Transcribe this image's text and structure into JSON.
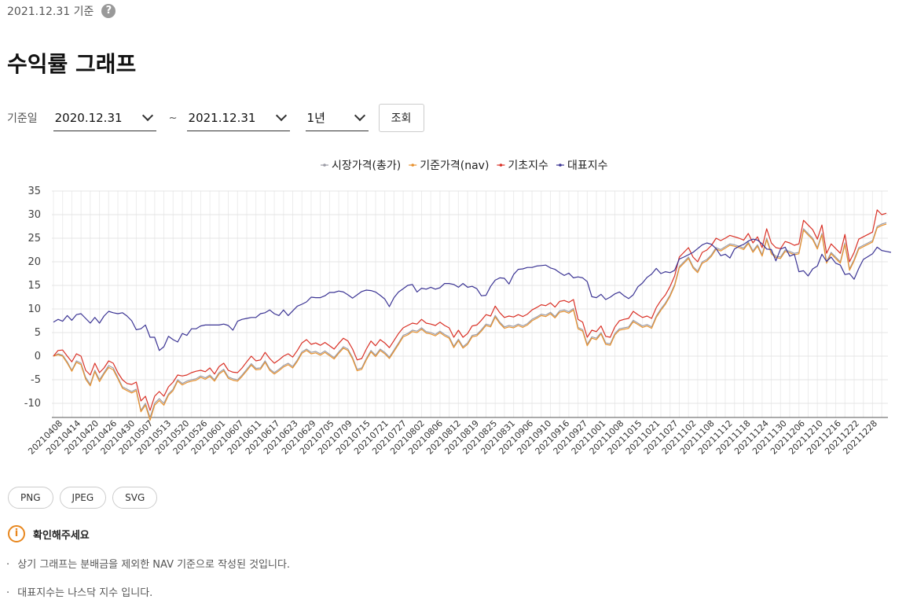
{
  "header": {
    "as_of": "2021.12.31 기준",
    "help_icon": "question-icon",
    "title": "수익률 그래프"
  },
  "filters": {
    "label": "기준일",
    "start_date": "2020.12.31",
    "separator": "~",
    "end_date": "2021.12.31",
    "period": "1년",
    "query_button": "조회"
  },
  "export_buttons": [
    "PNG",
    "JPEG",
    "SVG"
  ],
  "notice": {
    "icon": "info-icon",
    "title": "확인해주세요",
    "items": [
      "상기 그래프는 분배금을 제외한 NAV 기준으로 작성된 것입니다.",
      "대표지수는 나스닥 지수 입니다."
    ],
    "bullet": "·"
  },
  "colors": {
    "market": "#9c9ca6",
    "nav": "#e8922f",
    "base_index": "#d93025",
    "benchmark": "#3b3494"
  },
  "chart_data": {
    "type": "line",
    "x_start_date": "20210408",
    "x_end_date": "20211231",
    "x_tick_labels": [
      "20210408",
      "20210414",
      "20210420",
      "20210426",
      "20210430",
      "20210507",
      "20210513",
      "20210520",
      "20210526",
      "20210601",
      "20210607",
      "20210611",
      "20210617",
      "20210623",
      "20210629",
      "20210705",
      "20210709",
      "20210715",
      "20210721",
      "20210727",
      "20210802",
      "20210806",
      "20210812",
      "20210819",
      "20210825",
      "20210831",
      "20210906",
      "20210910",
      "20210916",
      "20210927",
      "20211001",
      "20211008",
      "20211015",
      "20211021",
      "20211027",
      "20211102",
      "20211108",
      "20211112",
      "20211118",
      "20211124",
      "20211130",
      "20211206",
      "20211210",
      "20211216",
      "20211222",
      "20211228"
    ],
    "y_ticks": [
      35,
      30,
      25,
      20,
      15,
      10,
      5,
      0,
      -5,
      -10
    ],
    "ylim": [
      -13,
      35
    ],
    "grid": true,
    "legend_position": "top-center",
    "series": [
      {
        "name": "시장가격(총가)",
        "color": "#9c9ca6",
        "values": [
          0,
          0.5,
          0.2,
          -1.2,
          -3,
          -1,
          -1.5,
          -4.5,
          -6,
          -3,
          -5,
          -3.5,
          -2,
          -2.5,
          -4.5,
          -6.5,
          -7,
          -7.5,
          -7,
          -11.5,
          -10,
          -13,
          -10,
          -9,
          -10,
          -8,
          -7,
          -5,
          -5.8,
          -5.3,
          -5,
          -4.8,
          -4.2,
          -4.6,
          -4,
          -5,
          -3.5,
          -2.8,
          -4.4,
          -4.8,
          -5,
          -4,
          -2.8,
          -1.6,
          -2.6,
          -2.5,
          -1,
          -2.7,
          -3.5,
          -2.8,
          -2,
          -1.5,
          -2.2,
          -0.8,
          0.9,
          1.5,
          0.8,
          1,
          0.5,
          1.1,
          0.4,
          -0.3,
          0.9,
          2,
          1.5,
          -0.3,
          -2.8,
          -2.5,
          -0.5,
          1.2,
          0.2,
          1.5,
          0.8,
          -0.2,
          1.3,
          2.8,
          4.4,
          4.8,
          5.5,
          5.3,
          6,
          5.2,
          5,
          4.6,
          5.3,
          4.6,
          4.1,
          2.1,
          3.6,
          2,
          2.8,
          4.4,
          4.6,
          5.6,
          6.8,
          6.5,
          8.6,
          7.2,
          6.2,
          6.5,
          6.3,
          6.8,
          6.4,
          6.9,
          7.8,
          8.3,
          8.9,
          8.7,
          9.3,
          8.4,
          9.6,
          9.8,
          9.4,
          10.1,
          6.1,
          5.6,
          2.5,
          4.1,
          3.8,
          5,
          2.8,
          2.6,
          4.8,
          5.8,
          6,
          6.2,
          7.6,
          7,
          6.4,
          6.7,
          6.2,
          8.5,
          10,
          11.3,
          13,
          15.2,
          19,
          20,
          21,
          19,
          18,
          20,
          20.5,
          21.5,
          23,
          22.6,
          23.2,
          23.8,
          23.6,
          23.3,
          22.9,
          24.2,
          22.3,
          23.6,
          21.5,
          25,
          22,
          21.2,
          21,
          22.5,
          22.2,
          21.8,
          22,
          27,
          26,
          25,
          23,
          26,
          20,
          22,
          21,
          20,
          24,
          18.5,
          20.5,
          23,
          23.5,
          24,
          24.5,
          27.5,
          28,
          28.3
        ]
      },
      {
        "name": "기준가격(nav)",
        "color": "#e8922f",
        "values": [
          0,
          0.3,
          0,
          -1.5,
          -3.2,
          -1.3,
          -1.8,
          -4.9,
          -6.3,
          -3.3,
          -5.4,
          -3.8,
          -2.4,
          -2.9,
          -4.8,
          -6.8,
          -7.3,
          -7.8,
          -7.3,
          -11.8,
          -10.4,
          -13.6,
          -10.4,
          -9.4,
          -10.4,
          -8.3,
          -7.3,
          -5.3,
          -6.1,
          -5.6,
          -5.3,
          -5.1,
          -4.5,
          -4.9,
          -4.3,
          -5.3,
          -3.8,
          -3.1,
          -4.7,
          -5.1,
          -5.3,
          -4.3,
          -3.1,
          -1.9,
          -2.9,
          -2.8,
          -1.3,
          -3,
          -3.8,
          -3.1,
          -2.3,
          -1.8,
          -2.5,
          -1.1,
          0.6,
          1.2,
          0.5,
          0.7,
          0.2,
          0.8,
          0.1,
          -0.6,
          0.6,
          1.7,
          1.2,
          -0.6,
          -3.1,
          -2.8,
          -0.8,
          0.9,
          -0.1,
          1.2,
          0.5,
          -0.5,
          1,
          2.5,
          4.1,
          4.5,
          5.2,
          5,
          5.7,
          4.9,
          4.7,
          4.3,
          5,
          4.3,
          3.8,
          1.8,
          3.3,
          1.7,
          2.5,
          4.1,
          4.3,
          5.3,
          6.5,
          6.2,
          8.3,
          6.9,
          5.9,
          6.2,
          6,
          6.5,
          6.1,
          6.6,
          7.5,
          8,
          8.6,
          8.4,
          9,
          8.1,
          9.3,
          9.5,
          9.1,
          9.8,
          5.8,
          5.3,
          2.2,
          3.8,
          3.5,
          4.7,
          2.5,
          2.3,
          4.5,
          5.5,
          5.7,
          5.9,
          7.3,
          6.7,
          6.1,
          6.4,
          5.9,
          8.2,
          9.7,
          11,
          12.7,
          14.9,
          18.7,
          19.7,
          20.7,
          18.7,
          17.7,
          19.7,
          20.2,
          21.2,
          22.7,
          22.3,
          22.9,
          23.5,
          23.3,
          23,
          22.6,
          23.9,
          22,
          23.3,
          21.2,
          24.7,
          21.7,
          20.9,
          20.7,
          22.2,
          21.9,
          21.5,
          21.7,
          26.7,
          25.7,
          24.7,
          22.7,
          25.7,
          19.7,
          21.7,
          20.7,
          19.7,
          23.7,
          18.2,
          20.2,
          22.7,
          23.2,
          23.7,
          24.2,
          27.2,
          27.7,
          28
        ]
      },
      {
        "name": "기초지수",
        "color": "#d93025",
        "values": [
          0,
          1.2,
          1.3,
          0,
          -1.2,
          0.5,
          0,
          -3,
          -4,
          -1.5,
          -3.5,
          -2.5,
          -1,
          -1.5,
          -3.5,
          -5,
          -5.8,
          -6,
          -5.5,
          -9.5,
          -8.5,
          -11.5,
          -8.5,
          -7.5,
          -8.5,
          -6.5,
          -5.5,
          -4,
          -4.2,
          -4,
          -3.5,
          -3.2,
          -3,
          -3.3,
          -2.5,
          -3.8,
          -2.2,
          -1.5,
          -3,
          -3.4,
          -3.5,
          -2.5,
          -1.2,
          0,
          -1,
          -0.8,
          0.8,
          -0.5,
          -1.5,
          -0.8,
          0,
          0.5,
          -0.2,
          1.2,
          2.8,
          3.5,
          2.5,
          2.8,
          2.3,
          2.9,
          2.2,
          1.5,
          2.7,
          3.8,
          3.2,
          1.5,
          -0.8,
          -0.5,
          1.5,
          3.2,
          2.2,
          3.5,
          2.8,
          1.8,
          3.3,
          4.8,
          6,
          6.5,
          7,
          6.8,
          7.8,
          7,
          6.8,
          6.5,
          7.2,
          6.5,
          6,
          4,
          5.5,
          4,
          4.8,
          6.4,
          6.6,
          7.6,
          8.8,
          8.5,
          10.6,
          9.2,
          8.2,
          8.5,
          8.3,
          8.8,
          8.4,
          8.9,
          9.8,
          10.3,
          10.9,
          10.7,
          11.3,
          10.4,
          11.6,
          11.8,
          11.4,
          12,
          7.8,
          7.2,
          4,
          5.5,
          5.2,
          6.4,
          4.2,
          4,
          6.2,
          7.5,
          7.8,
          8,
          9.5,
          8.8,
          8.2,
          8.5,
          8,
          10.3,
          11.8,
          13,
          14.8,
          17,
          21,
          22,
          23,
          21,
          20,
          22,
          22.5,
          23.5,
          25,
          24.5,
          25,
          25.6,
          25.3,
          25,
          24.6,
          26,
          24,
          25.3,
          23,
          27,
          24,
          23,
          22.8,
          24.3,
          24,
          23.5,
          23.8,
          28.8,
          27.8,
          26.8,
          24.8,
          27.8,
          21.8,
          23.8,
          22.8,
          21.8,
          25.8,
          20,
          22,
          24.8,
          25.3,
          25.8,
          26.3,
          31,
          30,
          30.3
        ]
      },
      {
        "name": "대표지수",
        "color": "#3b3494",
        "values": [
          7.2,
          7.8,
          7.4,
          8.6,
          7.6,
          8.8,
          9,
          8,
          7,
          8.2,
          7,
          8.5,
          9.5,
          9.2,
          9,
          9.2,
          8.5,
          7.5,
          5.6,
          5.8,
          6.6,
          4,
          4,
          1.2,
          2,
          4.2,
          3.5,
          3,
          4.8,
          4.4,
          5.8,
          5.8,
          6.4,
          6.6,
          6.6,
          6.6,
          6.6,
          6.8,
          6.5,
          5.5,
          7.4,
          7.8,
          8,
          8.2,
          8.2,
          9,
          9.2,
          9.8,
          9,
          8.6,
          9.8,
          8.6,
          9.6,
          10.6,
          11,
          11.5,
          12.5,
          12.4,
          12.4,
          12.8,
          13.5,
          13.5,
          13.8,
          13.6,
          13,
          12.3,
          13,
          13.7,
          14,
          13.9,
          13.6,
          12.9,
          12.1,
          10.5,
          12.4,
          13.6,
          14.3,
          15,
          15.2,
          13.6,
          14.4,
          14.2,
          14.6,
          14.2,
          14.5,
          15.4,
          15.4,
          15.2,
          14.6,
          15.4,
          14.6,
          14.8,
          14.3,
          12.8,
          12.9,
          14.8,
          16.1,
          16.6,
          16.5,
          15.3,
          17.3,
          18.4,
          18.5,
          18.8,
          18.8,
          19.1,
          19.2,
          19.3,
          18.7,
          18.4,
          17.7,
          17.1,
          17.6,
          16.6,
          16.8,
          16.6,
          15.8,
          12.6,
          12.4,
          13.1,
          12,
          12.5,
          13.2,
          13.6,
          12.8,
          12.2,
          13,
          14.7,
          15.5,
          16.7,
          17.4,
          18.6,
          17.5,
          17.9,
          17.7,
          18.2,
          20.6,
          21,
          21.5,
          22,
          22.8,
          23.6,
          24,
          23.7,
          22.8,
          21.3,
          21.6,
          20.8,
          22.7,
          23.3,
          23.7,
          24.4,
          24.8,
          24.6,
          23.8,
          22.7,
          22.6,
          20.2,
          22.7,
          23.1,
          21.2,
          21.6,
          17.9,
          18.1,
          17,
          18.5,
          19.1,
          21.6,
          20.1,
          21,
          19.7,
          19.3,
          17.3,
          17.5,
          16.3,
          18.6,
          20.5,
          21.1,
          21.7,
          23.1,
          22.4,
          22.2,
          22
        ]
      }
    ]
  }
}
